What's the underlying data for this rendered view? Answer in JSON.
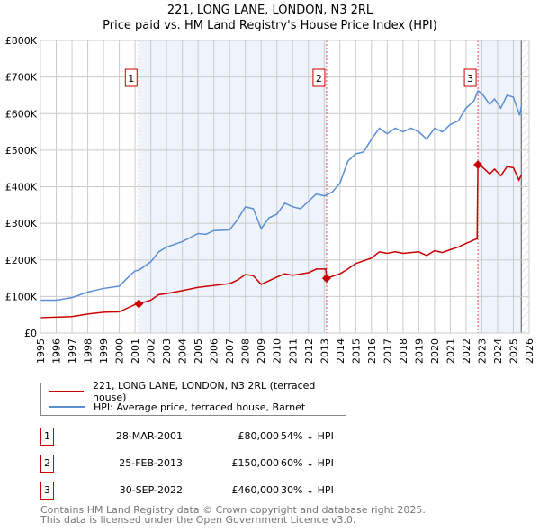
{
  "title": "221, LONG LANE, LONDON, N3 2RL",
  "subtitle": "Price paid vs. HM Land Registry's House Price Index (HPI)",
  "chart_data": {
    "type": "line",
    "title": "221, LONG LANE, LONDON, N3 2RL — Price paid vs. HM Land Registry's House Price Index (HPI)",
    "xlim": [
      1995,
      2026
    ],
    "ylim": [
      0,
      800000
    ],
    "x_ticks": [
      "1995",
      "1996",
      "1997",
      "1998",
      "1999",
      "2000",
      "2001",
      "2002",
      "2003",
      "2004",
      "2005",
      "2006",
      "2007",
      "2008",
      "2009",
      "2010",
      "2011",
      "2012",
      "2013",
      "2014",
      "2015",
      "2016",
      "2017",
      "2018",
      "2019",
      "2020",
      "2021",
      "2022",
      "2023",
      "2024",
      "2025",
      "2026"
    ],
    "y_ticks": [
      {
        "v": 0,
        "label": "£0"
      },
      {
        "v": 100000,
        "label": "£100K"
      },
      {
        "v": 200000,
        "label": "£200K"
      },
      {
        "v": 300000,
        "label": "£300K"
      },
      {
        "v": 400000,
        "label": "£400K"
      },
      {
        "v": 500000,
        "label": "£500K"
      },
      {
        "v": 600000,
        "label": "£600K"
      },
      {
        "v": 700000,
        "label": "£700K"
      },
      {
        "v": 800000,
        "label": "£800K"
      }
    ],
    "grid": true,
    "shaded_ranges": [
      [
        2001.24,
        2013.15
      ],
      [
        2022.75,
        2025.5
      ]
    ],
    "hatched_from": 2025.5,
    "series": [
      {
        "name": "221, LONG LANE, LONDON, N3 2RL (terraced house)",
        "color": "#cc0000",
        "x": [
          1995,
          1997,
          1998,
          1999,
          2000,
          2000.5,
          2001,
          2001.24,
          2002,
          2002.5,
          2003,
          2004,
          2005,
          2006,
          2007,
          2007.5,
          2008,
          2008.5,
          2009,
          2009.5,
          2010,
          2010.5,
          2011,
          2012,
          2012.5,
          2013.1,
          2013.15,
          2014,
          2014.5,
          2015,
          2016,
          2016.5,
          2017,
          2017.5,
          2018,
          2019,
          2019.5,
          2020,
          2020.5,
          2021,
          2021.5,
          2022,
          2022.7,
          2022.75,
          2023,
          2023.5,
          2023.8,
          2024.2,
          2024.6,
          2025,
          2025.35,
          2025.5
        ],
        "y": [
          42000,
          45000,
          52000,
          57000,
          58000,
          68000,
          78000,
          80000,
          90000,
          105000,
          108000,
          116000,
          125000,
          130000,
          135000,
          145000,
          160000,
          157000,
          133000,
          143000,
          153000,
          162000,
          158000,
          165000,
          175000,
          175000,
          150000,
          162000,
          175000,
          190000,
          205000,
          222000,
          218000,
          222000,
          218000,
          222000,
          212000,
          225000,
          220000,
          228000,
          235000,
          245000,
          258000,
          460000,
          455000,
          435000,
          448000,
          430000,
          455000,
          452000,
          418000,
          432000
        ]
      },
      {
        "name": "HPI: Average price, terraced house, Barnet",
        "color": "#5b8fd4",
        "x": [
          1995,
          1996,
          1997,
          1998,
          1999,
          2000,
          2000.5,
          2001,
          2001.25,
          2002,
          2002.5,
          2003,
          2004,
          2005,
          2005.5,
          2006,
          2007,
          2007.5,
          2008,
          2008.5,
          2009,
          2009.5,
          2010,
          2010.5,
          2011,
          2011.5,
          2012,
          2012.5,
          2013,
          2013.5,
          2014,
          2014.5,
          2015,
          2015.5,
          2016,
          2016.5,
          2017,
          2017.5,
          2018,
          2018.5,
          2019,
          2019.5,
          2020,
          2020.5,
          2021,
          2021.5,
          2022,
          2022.5,
          2022.75,
          2023,
          2023.5,
          2023.8,
          2024.2,
          2024.6,
          2025,
          2025.4,
          2025.5
        ],
        "y": [
          90000,
          90000,
          97000,
          112000,
          122000,
          128000,
          150000,
          170000,
          172000,
          195000,
          222000,
          235000,
          250000,
          272000,
          270000,
          280000,
          282000,
          310000,
          345000,
          340000,
          285000,
          315000,
          325000,
          355000,
          345000,
          340000,
          360000,
          380000,
          375000,
          385000,
          410000,
          470000,
          490000,
          495000,
          530000,
          560000,
          545000,
          560000,
          550000,
          560000,
          550000,
          530000,
          560000,
          550000,
          570000,
          580000,
          615000,
          635000,
          662000,
          655000,
          625000,
          640000,
          615000,
          650000,
          645000,
          595000,
          620000
        ]
      }
    ],
    "sales": [
      {
        "num": "1",
        "x": 2001.24,
        "y": 80000,
        "date": "28-MAR-2001",
        "price": "£80,000",
        "hpi": "54% ↓ HPI"
      },
      {
        "num": "2",
        "x": 2013.15,
        "y": 150000,
        "date": "25-FEB-2013",
        "price": "£150,000",
        "hpi": "60% ↓ HPI"
      },
      {
        "num": "3",
        "x": 2022.75,
        "y": 460000,
        "date": "30-SEP-2022",
        "price": "£460,000",
        "hpi": "30% ↓ HPI"
      }
    ],
    "legend": "below"
  },
  "legend": {
    "series0": "221, LONG LANE, LONDON, N3 2RL (terraced house)",
    "series1": "HPI: Average price, terraced house, Barnet"
  },
  "footer": {
    "line1": "Contains HM Land Registry data © Crown copyright and database right 2025.",
    "line2": "This data is licensed under the Open Government Licence v3.0."
  }
}
